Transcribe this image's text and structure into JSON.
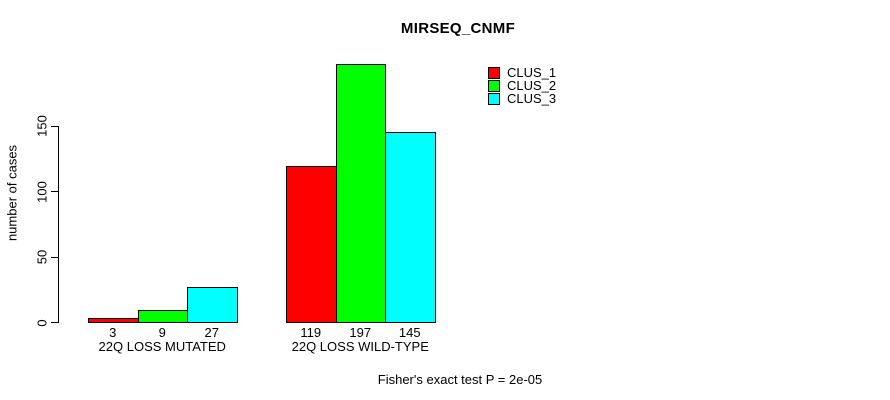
{
  "chart_data": {
    "type": "bar",
    "title": "MIRSEQ_CNMF",
    "ylabel": "number of cases",
    "xlabel": "",
    "categories": [
      "22Q LOSS MUTATED",
      "22Q LOSS WILD-TYPE"
    ],
    "series": [
      {
        "name": "CLUS_1",
        "color": "#ff0000",
        "values": [
          3,
          119
        ]
      },
      {
        "name": "CLUS_2",
        "color": "#00ff00",
        "values": [
          9,
          197
        ]
      },
      {
        "name": "CLUS_3",
        "color": "#00ffff",
        "values": [
          27,
          145
        ]
      }
    ],
    "yticks": [
      0,
      50,
      100,
      150
    ],
    "ylim": [
      0,
      200
    ],
    "grid": false,
    "bar_value_labels": true,
    "bar_border_color": "#000000",
    "axis_color": "#000000",
    "legend_position": "top-right",
    "footnote": "Fisher's exact test P = 2e-05"
  }
}
